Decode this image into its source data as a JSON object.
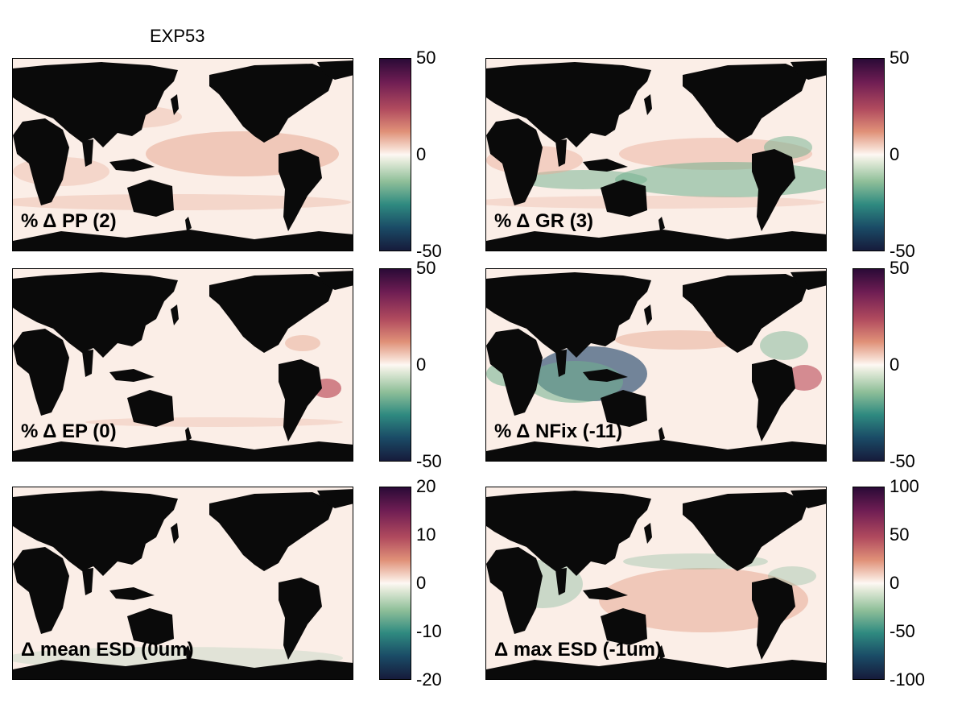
{
  "figure": {
    "title": "EXP53"
  },
  "colors": {
    "land": "#0a0a0a",
    "ocean_neutral": "#fbeee7",
    "positive": "#e8a994",
    "strong_positive": "#b53a4a",
    "negative": "#6fb08e",
    "strong_negative": "#173d66"
  },
  "chart_data": [
    {
      "type": "heatmap",
      "title": "% Δ PP (2)",
      "colorbar": {
        "ticks": [
          "50",
          "0",
          "-50"
        ],
        "range": [
          -50,
          50
        ]
      },
      "dominant_anomaly": "positive"
    },
    {
      "type": "heatmap",
      "title": "% Δ GR (3)",
      "colorbar": {
        "ticks": [
          "50",
          "0",
          "-50"
        ],
        "range": [
          -50,
          50
        ]
      },
      "dominant_anomaly": "mixed"
    },
    {
      "type": "heatmap",
      "title": "% Δ EP (0)",
      "colorbar": {
        "ticks": [
          "50",
          "0",
          "-50"
        ],
        "range": [
          -50,
          50
        ]
      },
      "dominant_anomaly": "neutral"
    },
    {
      "type": "heatmap",
      "title": "% Δ NFix (-11)",
      "colorbar": {
        "ticks": [
          "50",
          "0",
          "-50"
        ],
        "range": [
          -50,
          50
        ]
      },
      "dominant_anomaly": "mixed-strong"
    },
    {
      "type": "heatmap",
      "title": "Δ mean ESD (0um)",
      "colorbar": {
        "ticks": [
          "20",
          "10",
          "0",
          "-10",
          "-20"
        ],
        "range": [
          -20,
          20
        ]
      },
      "dominant_anomaly": "neutral"
    },
    {
      "type": "heatmap",
      "title": "Δ max ESD (-1um)",
      "colorbar": {
        "ticks": [
          "100",
          "50",
          "0",
          "-50",
          "-100"
        ],
        "range": [
          -100,
          100
        ]
      },
      "dominant_anomaly": "mixed-weak"
    }
  ]
}
